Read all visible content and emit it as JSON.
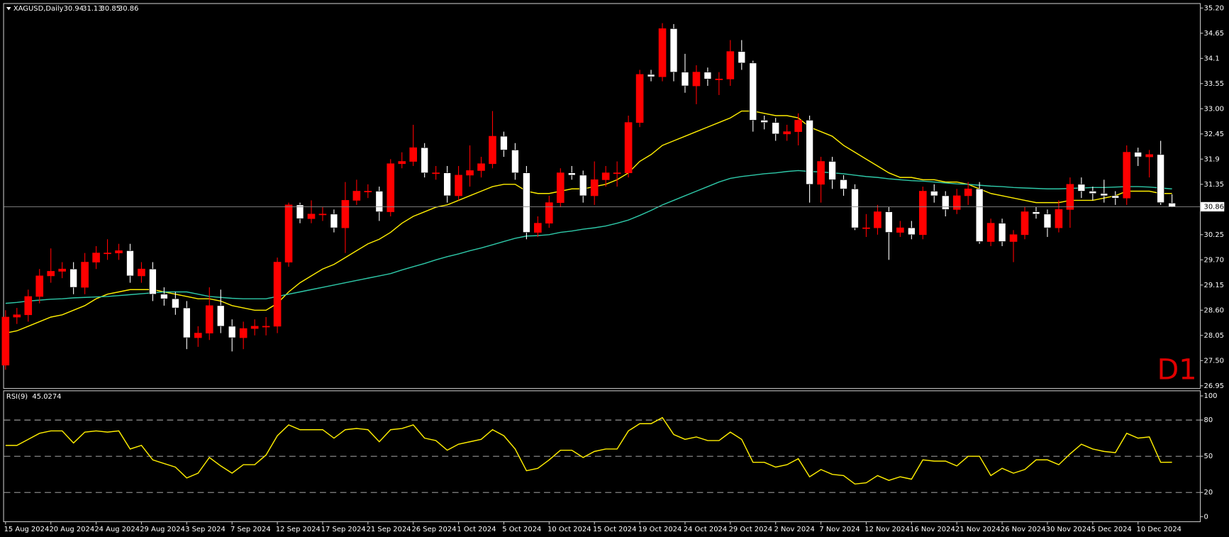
{
  "chart_data": [
    {
      "type": "candlestick",
      "title": "XAGUSD,Daily",
      "annotation": "D1",
      "up_color": "#ff0000",
      "down_color": "#ffffff",
      "price_line_color": "#8a8a8a",
      "categories": [
        "15 Aug 2024",
        null,
        null,
        null,
        "20 Aug 2024",
        null,
        null,
        null,
        "24 Aug 2024",
        null,
        null,
        null,
        "29 Aug 2024",
        null,
        null,
        null,
        "3 Sep 2024",
        null,
        null,
        null,
        "7 Sep 2024",
        null,
        null,
        null,
        "12 Sep 2024",
        null,
        null,
        null,
        "17 Sep 2024",
        null,
        null,
        null,
        "21 Sep 2024",
        null,
        null,
        null,
        "26 Sep 2024",
        null,
        null,
        null,
        "1 Oct 2024",
        null,
        null,
        null,
        "5 Oct 2024",
        null,
        null,
        null,
        "10 Oct 2024",
        null,
        null,
        null,
        "15 Oct 2024",
        null,
        null,
        null,
        "19 Oct 2024",
        null,
        null,
        null,
        "24 Oct 2024",
        null,
        null,
        null,
        "29 Oct 2024",
        null,
        null,
        null,
        "2 Nov 2024",
        null,
        null,
        null,
        "7 Nov 2024",
        null,
        null,
        null,
        "12 Nov 2024",
        null,
        null,
        null,
        "16 Nov 2024",
        null,
        null,
        null,
        "21 Nov 2024",
        null,
        null,
        null,
        "26 Nov 2024",
        null,
        null,
        null,
        "30 Nov 2024",
        null,
        null,
        null,
        "5 Dec 2024",
        null,
        null,
        null,
        "10 Dec 2024",
        null,
        null,
        null
      ],
      "open": [
        27.4,
        28.45,
        28.5,
        28.9,
        29.35,
        29.45,
        29.5,
        29.1,
        29.65,
        29.85,
        29.85,
        29.9,
        29.35,
        29.5,
        28.95,
        28.85,
        28.65,
        28.0,
        28.1,
        28.7,
        28.25,
        28.0,
        28.2,
        28.25,
        28.25,
        29.65,
        30.9,
        30.6,
        30.7,
        30.7,
        30.4,
        31.0,
        31.2,
        31.2,
        30.75,
        31.8,
        31.85,
        32.15,
        31.6,
        31.6,
        31.1,
        31.55,
        31.65,
        31.8,
        32.4,
        32.1,
        31.6,
        30.3,
        30.5,
        30.95,
        31.6,
        31.55,
        31.1,
        31.45,
        31.6,
        31.6,
        32.7,
        33.75,
        33.7,
        34.75,
        33.8,
        33.5,
        33.8,
        33.65,
        33.65,
        34.25,
        34.0,
        32.75,
        32.7,
        32.45,
        32.5,
        32.75,
        31.35,
        31.85,
        31.45,
        31.25,
        30.4,
        30.4,
        30.75,
        30.3,
        30.4,
        30.25,
        31.2,
        31.1,
        30.8,
        31.1,
        31.25,
        30.1,
        30.5,
        30.1,
        30.25,
        30.75,
        30.7,
        30.4,
        30.8,
        31.35,
        31.2,
        31.15,
        31.1,
        31.05,
        32.05,
        31.95,
        32.0,
        30.94
      ],
      "high": [
        28.6,
        28.65,
        29.05,
        29.5,
        29.95,
        29.65,
        29.65,
        29.85,
        30.0,
        30.15,
        30.05,
        30.05,
        29.65,
        29.65,
        29.1,
        29.0,
        28.8,
        28.25,
        29.1,
        29.05,
        28.4,
        28.35,
        28.4,
        28.45,
        29.75,
        30.95,
        30.95,
        31.0,
        30.85,
        30.8,
        31.4,
        31.45,
        31.35,
        31.3,
        31.9,
        32.05,
        32.65,
        32.25,
        31.75,
        31.75,
        31.75,
        32.2,
        31.95,
        32.95,
        32.5,
        32.25,
        31.75,
        30.65,
        31.1,
        31.7,
        31.75,
        31.65,
        31.85,
        31.75,
        31.85,
        32.85,
        33.85,
        33.85,
        34.87,
        34.85,
        34.2,
        33.95,
        33.9,
        33.8,
        34.5,
        34.5,
        34.05,
        32.85,
        32.8,
        32.65,
        32.9,
        32.85,
        31.95,
        31.95,
        31.55,
        31.35,
        30.7,
        30.9,
        30.85,
        30.55,
        30.55,
        31.3,
        31.35,
        31.2,
        31.25,
        31.4,
        31.4,
        30.6,
        30.6,
        30.35,
        30.85,
        30.85,
        30.8,
        31.0,
        31.5,
        31.5,
        31.3,
        31.45,
        31.2,
        32.2,
        32.15,
        32.1,
        32.3,
        31.13
      ],
      "low": [
        27.3,
        28.3,
        28.35,
        28.75,
        29.2,
        29.3,
        28.95,
        28.95,
        29.5,
        29.7,
        29.7,
        29.2,
        29.2,
        28.8,
        28.7,
        28.5,
        27.75,
        27.8,
        27.95,
        28.1,
        27.7,
        27.75,
        28.05,
        28.05,
        28.1,
        29.55,
        30.5,
        30.5,
        30.55,
        30.3,
        29.85,
        30.9,
        31.05,
        30.55,
        30.65,
        31.7,
        31.75,
        31.5,
        31.45,
        30.95,
        31.0,
        31.3,
        31.5,
        31.7,
        31.95,
        31.45,
        30.15,
        30.2,
        30.4,
        30.85,
        31.45,
        30.95,
        30.9,
        31.3,
        31.3,
        31.5,
        32.6,
        33.6,
        33.6,
        33.6,
        33.35,
        33.1,
        33.5,
        33.3,
        33.5,
        33.85,
        32.5,
        32.55,
        32.3,
        32.3,
        32.2,
        30.95,
        30.95,
        31.25,
        31.1,
        30.35,
        30.2,
        30.25,
        29.7,
        30.2,
        30.15,
        30.15,
        30.95,
        30.65,
        30.7,
        30.9,
        30.05,
        30.0,
        30.0,
        29.65,
        30.15,
        30.6,
        30.2,
        30.3,
        30.4,
        31.05,
        31.0,
        30.95,
        30.9,
        30.9,
        31.75,
        31.5,
        30.9,
        30.85
      ],
      "close": [
        28.45,
        28.5,
        28.9,
        29.35,
        29.45,
        29.5,
        29.1,
        29.65,
        29.85,
        29.85,
        29.9,
        29.35,
        29.5,
        28.95,
        28.85,
        28.65,
        28.0,
        28.1,
        28.7,
        28.25,
        28.0,
        28.2,
        28.25,
        28.25,
        29.65,
        30.9,
        30.6,
        30.7,
        30.7,
        30.4,
        31.0,
        31.2,
        31.2,
        30.75,
        31.8,
        31.85,
        32.15,
        31.6,
        31.6,
        31.1,
        31.55,
        31.65,
        31.8,
        32.4,
        32.1,
        31.6,
        30.3,
        30.5,
        30.95,
        31.6,
        31.55,
        31.1,
        31.45,
        31.6,
        31.6,
        32.7,
        33.75,
        33.7,
        34.75,
        33.8,
        33.5,
        33.8,
        33.65,
        33.65,
        34.25,
        34.0,
        32.75,
        32.7,
        32.45,
        32.5,
        32.75,
        31.35,
        31.85,
        31.45,
        31.25,
        30.4,
        30.4,
        30.75,
        30.3,
        30.4,
        30.25,
        31.2,
        31.1,
        30.8,
        31.1,
        31.25,
        30.1,
        30.5,
        30.1,
        30.25,
        30.75,
        30.7,
        30.4,
        30.8,
        31.35,
        31.2,
        31.15,
        31.1,
        31.05,
        32.05,
        31.95,
        32.0,
        30.95,
        30.86
      ],
      "series": [
        {
          "color": "#ffee00",
          "values": [
            28.1,
            28.15,
            28.25,
            28.35,
            28.45,
            28.5,
            28.6,
            28.7,
            28.85,
            28.95,
            29.0,
            29.05,
            29.05,
            29.05,
            29.0,
            28.95,
            28.9,
            28.85,
            28.85,
            28.8,
            28.7,
            28.65,
            28.6,
            28.6,
            28.75,
            29.0,
            29.2,
            29.35,
            29.5,
            29.6,
            29.75,
            29.9,
            30.05,
            30.15,
            30.3,
            30.5,
            30.65,
            30.75,
            30.85,
            30.9,
            31.0,
            31.1,
            31.2,
            31.3,
            31.35,
            31.35,
            31.2,
            31.15,
            31.15,
            31.2,
            31.25,
            31.25,
            31.3,
            31.35,
            31.45,
            31.6,
            31.85,
            32.0,
            32.2,
            32.3,
            32.4,
            32.5,
            32.6,
            32.7,
            32.8,
            32.95,
            32.95,
            32.9,
            32.85,
            32.85,
            32.8,
            32.6,
            32.5,
            32.4,
            32.2,
            32.05,
            31.9,
            31.75,
            31.6,
            31.5,
            31.5,
            31.45,
            31.45,
            31.4,
            31.4,
            31.35,
            31.25,
            31.15,
            31.1,
            31.05,
            31.0,
            30.95,
            30.95,
            30.95,
            31.0,
            31.0,
            31.0,
            31.05,
            31.1,
            31.2,
            31.2,
            31.2,
            31.15,
            31.15
          ]
        },
        {
          "color": "#2ec8a8",
          "values": [
            28.75,
            28.77,
            28.8,
            28.82,
            28.84,
            28.85,
            28.87,
            28.88,
            28.89,
            28.9,
            28.92,
            28.94,
            28.96,
            28.98,
            29.0,
            29.0,
            29.0,
            28.95,
            28.9,
            28.88,
            28.86,
            28.85,
            28.85,
            28.85,
            28.9,
            28.95,
            29.0,
            29.05,
            29.1,
            29.15,
            29.2,
            29.25,
            29.3,
            29.35,
            29.4,
            29.48,
            29.55,
            29.62,
            29.7,
            29.77,
            29.83,
            29.9,
            29.96,
            30.03,
            30.1,
            30.17,
            30.22,
            30.23,
            30.25,
            30.3,
            30.33,
            30.37,
            30.4,
            30.44,
            30.5,
            30.57,
            30.67,
            30.78,
            30.9,
            31.0,
            31.1,
            31.2,
            31.3,
            31.4,
            31.48,
            31.52,
            31.55,
            31.58,
            31.6,
            31.63,
            31.65,
            31.63,
            31.62,
            31.6,
            31.58,
            31.55,
            31.52,
            31.5,
            31.47,
            31.45,
            31.43,
            31.42,
            31.4,
            31.38,
            31.36,
            31.35,
            31.33,
            31.31,
            31.3,
            31.28,
            31.27,
            31.26,
            31.25,
            31.25,
            31.26,
            31.27,
            31.28,
            31.28,
            31.29,
            31.3,
            31.3,
            31.29,
            31.27,
            31.25
          ]
        }
      ],
      "ylim": [
        26.9,
        35.29
      ],
      "yticks": [
        {
          "value": 35.2,
          "label": "35.20"
        },
        34.65,
        34.1,
        33.55,
        {
          "value": 33.0,
          "label": "33.00"
        },
        32.45,
        31.9,
        31.35,
        30.25,
        {
          "value": 29.7,
          "label": "29.70"
        },
        29.15,
        {
          "value": 28.6,
          "label": "28.60"
        },
        28.05,
        {
          "value": 27.5,
          "label": "27.50"
        },
        26.95
      ]
    },
    {
      "type": "line",
      "title": "RSI(9)",
      "series": [
        {
          "color": "#ffee00",
          "values": [
            59,
            59,
            64,
            69,
            71,
            71,
            61,
            70,
            71,
            70,
            71,
            56,
            59,
            47,
            44,
            41,
            32,
            36,
            49,
            42,
            36,
            43,
            43,
            51,
            67,
            76,
            72,
            72,
            72,
            65,
            72,
            73,
            72,
            62,
            72,
            73,
            76,
            65,
            63,
            55,
            60,
            62,
            64,
            72,
            67,
            56,
            38,
            40,
            47,
            55,
            55,
            49,
            54,
            56,
            56,
            71,
            77,
            77,
            82,
            68,
            64,
            66,
            63,
            63,
            70,
            64,
            45,
            45,
            41,
            43,
            48,
            33,
            39,
            35,
            34,
            27,
            28,
            34,
            30,
            33,
            31,
            47,
            46,
            46,
            42,
            50,
            50,
            34,
            40,
            36,
            39,
            47,
            47,
            43,
            52,
            60,
            56,
            54,
            53,
            69,
            65,
            66,
            45,
            45.0274
          ]
        }
      ],
      "ylim": [
        -3.9,
        103.9
      ],
      "yticks": [
        100,
        80,
        50,
        20,
        0
      ]
    }
  ]
}
